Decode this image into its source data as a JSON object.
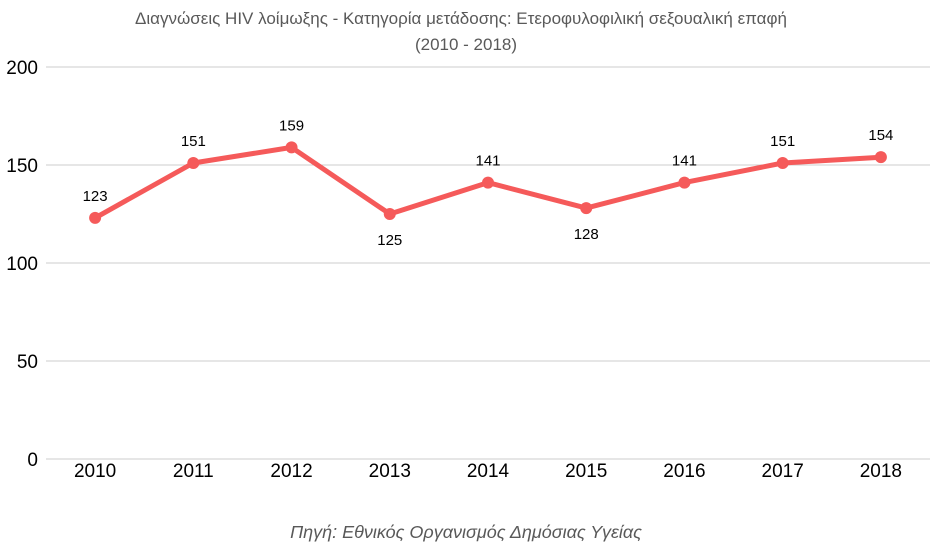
{
  "chart_data": {
    "type": "line",
    "title": "Διαγνώσεις HIV λοίμωξης - Κατηγορία μετάδοσης: Ετεροφυλοφιλική σεξουαλική επαφή",
    "subtitle": "(2010 - 2018)",
    "xlabel": "",
    "ylabel": "",
    "x": [
      "2010",
      "2011",
      "2012",
      "2013",
      "2014",
      "2015",
      "2016",
      "2017",
      "2018"
    ],
    "series": [
      {
        "values": [
          123,
          151,
          159,
          125,
          141,
          128,
          141,
          151,
          154
        ],
        "color": "#f55a5a"
      }
    ],
    "data_labels": [
      "123",
      "151",
      "159",
      "125",
      "141",
      "128",
      "141",
      "151",
      "154"
    ],
    "label_position": [
      "above",
      "above",
      "above",
      "below",
      "above",
      "below",
      "above",
      "above",
      "above"
    ],
    "ylim": [
      0,
      200
    ],
    "yticks": [
      0,
      50,
      100,
      150,
      200
    ],
    "ytick_labels": [
      "0",
      "50",
      "100",
      "150",
      "200"
    ],
    "grid": true,
    "gridline_color": "#cccccc",
    "legend": "none",
    "source": "Πηγή: Εθνικός Οργανισμός Δημόσιας Υγείας"
  }
}
